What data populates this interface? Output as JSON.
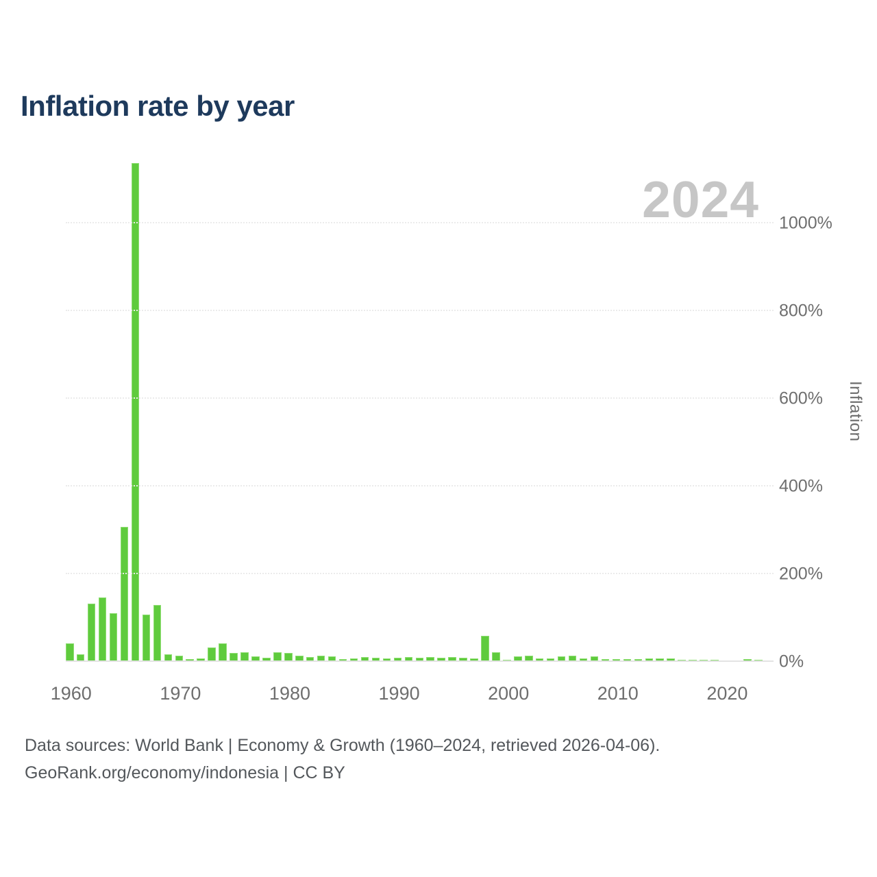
{
  "page": {
    "title": "Inflation rate by year",
    "watermark": "2024",
    "footer_line1": "Data sources: World Bank | Economy & Growth (1960–2024, retrieved 2026-04-06).",
    "footer_line2": "GeoRank.org/economy/indonesia | CC BY"
  },
  "colors": {
    "bar": "#5fcb3d",
    "bar_edge": "#8edd72",
    "title_text": "#1e3a5c",
    "axis_text": "#6e6e6e",
    "footer_text": "#53575b",
    "watermark_text": "#c6c6c6",
    "gridline": "#ebebeb",
    "baseline": "#e3e3e3"
  },
  "chart_data": {
    "type": "bar",
    "title": "Inflation rate by year",
    "xlabel": "",
    "ylabel": "Inflation",
    "legend_position": "none",
    "grid": "horizontal-dotted",
    "ylim": [
      0,
      1150
    ],
    "y_tick_values": [
      0,
      200,
      400,
      600,
      800,
      1000
    ],
    "y_tick_labels": [
      "0%",
      "200%",
      "400%",
      "600%",
      "800%",
      "1000%"
    ],
    "x_tick_values": [
      1960,
      1970,
      1980,
      1990,
      2000,
      2010,
      2020
    ],
    "x_tick_labels": [
      "1960",
      "1970",
      "1980",
      "1990",
      "2000",
      "2010",
      "2020"
    ],
    "x": [
      1960,
      1961,
      1962,
      1963,
      1964,
      1965,
      1966,
      1967,
      1968,
      1969,
      1970,
      1971,
      1972,
      1973,
      1974,
      1975,
      1976,
      1977,
      1978,
      1979,
      1980,
      1981,
      1982,
      1983,
      1984,
      1985,
      1986,
      1987,
      1988,
      1989,
      1990,
      1991,
      1992,
      1993,
      1994,
      1995,
      1996,
      1997,
      1998,
      1999,
      2000,
      2001,
      2002,
      2003,
      2004,
      2005,
      2006,
      2007,
      2008,
      2009,
      2010,
      2011,
      2012,
      2013,
      2014,
      2015,
      2016,
      2017,
      2018,
      2019,
      2020,
      2021,
      2022,
      2023,
      2024
    ],
    "series": [
      {
        "name": "Inflation",
        "unit": "%",
        "values": [
          41.0,
          16.0,
          131.3,
          146.0,
          108.9,
          306.3,
          1136.3,
          106.0,
          128.8,
          15.5,
          12.3,
          4.4,
          6.5,
          31.0,
          40.6,
          19.1,
          19.9,
          11.0,
          8.1,
          20.5,
          18.0,
          12.2,
          9.5,
          11.8,
          10.5,
          4.7,
          5.8,
          9.3,
          8.0,
          6.4,
          7.8,
          9.4,
          7.5,
          9.7,
          8.5,
          9.4,
          8.0,
          6.2,
          58.4,
          20.5,
          3.7,
          11.5,
          11.9,
          6.8,
          6.1,
          10.5,
          13.1,
          6.4,
          10.2,
          4.4,
          5.1,
          5.4,
          4.3,
          6.4,
          6.4,
          6.4,
          3.5,
          3.8,
          3.2,
          3.0,
          1.9,
          1.6,
          4.2,
          3.7,
          2.3
        ]
      }
    ],
    "watermark": "2024"
  }
}
